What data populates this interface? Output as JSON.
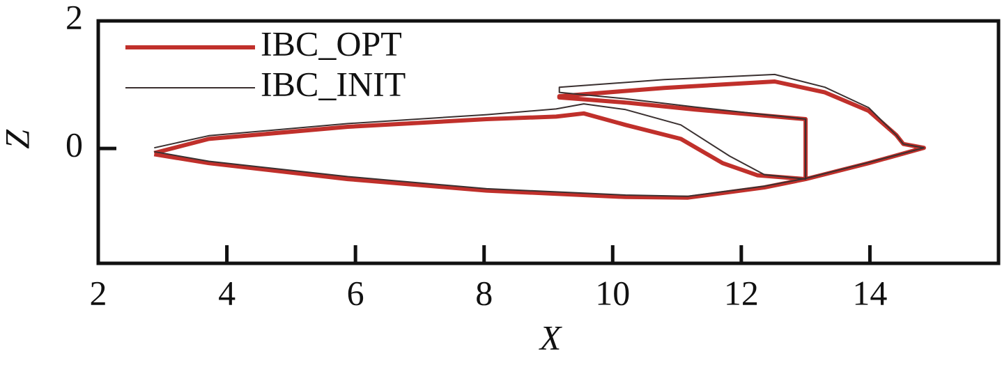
{
  "chart_data": {
    "type": "line",
    "xlabel": "X",
    "ylabel": "Z",
    "xlim": [
      2,
      16
    ],
    "ylim": [
      -1.8,
      2
    ],
    "xticks": [
      2,
      4,
      6,
      8,
      10,
      12,
      14
    ],
    "yticks": [
      0,
      2
    ],
    "legend": "upper left",
    "series": [
      {
        "name": "IBC_OPT",
        "color": "#c0302b",
        "x": [
          2.87,
          3.72,
          5.88,
          8.04,
          9.12,
          9.55,
          10.2,
          11.06,
          11.71,
          12.25,
          13.0,
          13.0,
          11.28,
          10.2,
          9.17,
          9.17,
          10.8,
          12.52,
          13.3,
          13.98,
          14.41,
          14.52,
          14.84,
          13.98,
          13.0,
          12.36,
          11.17,
          10.2,
          8.04,
          5.88,
          3.72,
          2.87
        ],
        "values": [
          -0.07,
          0.15,
          0.34,
          0.46,
          0.5,
          0.55,
          0.37,
          0.15,
          -0.23,
          -0.42,
          -0.48,
          0.46,
          0.61,
          0.72,
          0.8,
          0.82,
          0.95,
          1.05,
          0.88,
          0.59,
          0.21,
          0.07,
          0.01,
          -0.23,
          -0.48,
          -0.61,
          -0.77,
          -0.76,
          -0.66,
          -0.48,
          -0.23,
          -0.09
        ]
      },
      {
        "name": "IBC_INIT",
        "color": "#3a3030",
        "x": [
          2.87,
          3.72,
          5.88,
          8.04,
          9.12,
          9.55,
          10.2,
          11.06,
          11.82,
          12.36,
          13.0,
          13.0,
          11.28,
          10.2,
          9.17,
          9.17,
          10.8,
          12.52,
          13.3,
          13.98,
          14.41,
          14.52,
          14.84,
          13.98,
          13.0,
          12.36,
          11.17,
          10.2,
          8.04,
          5.88,
          3.72,
          2.87
        ],
        "values": [
          0.01,
          0.2,
          0.39,
          0.53,
          0.62,
          0.7,
          0.61,
          0.37,
          -0.12,
          -0.41,
          -0.48,
          0.46,
          0.65,
          0.78,
          0.88,
          0.96,
          1.08,
          1.16,
          0.96,
          0.64,
          0.21,
          0.07,
          0.01,
          -0.22,
          -0.47,
          -0.59,
          -0.75,
          -0.73,
          -0.63,
          -0.44,
          -0.2,
          -0.05
        ]
      }
    ]
  }
}
